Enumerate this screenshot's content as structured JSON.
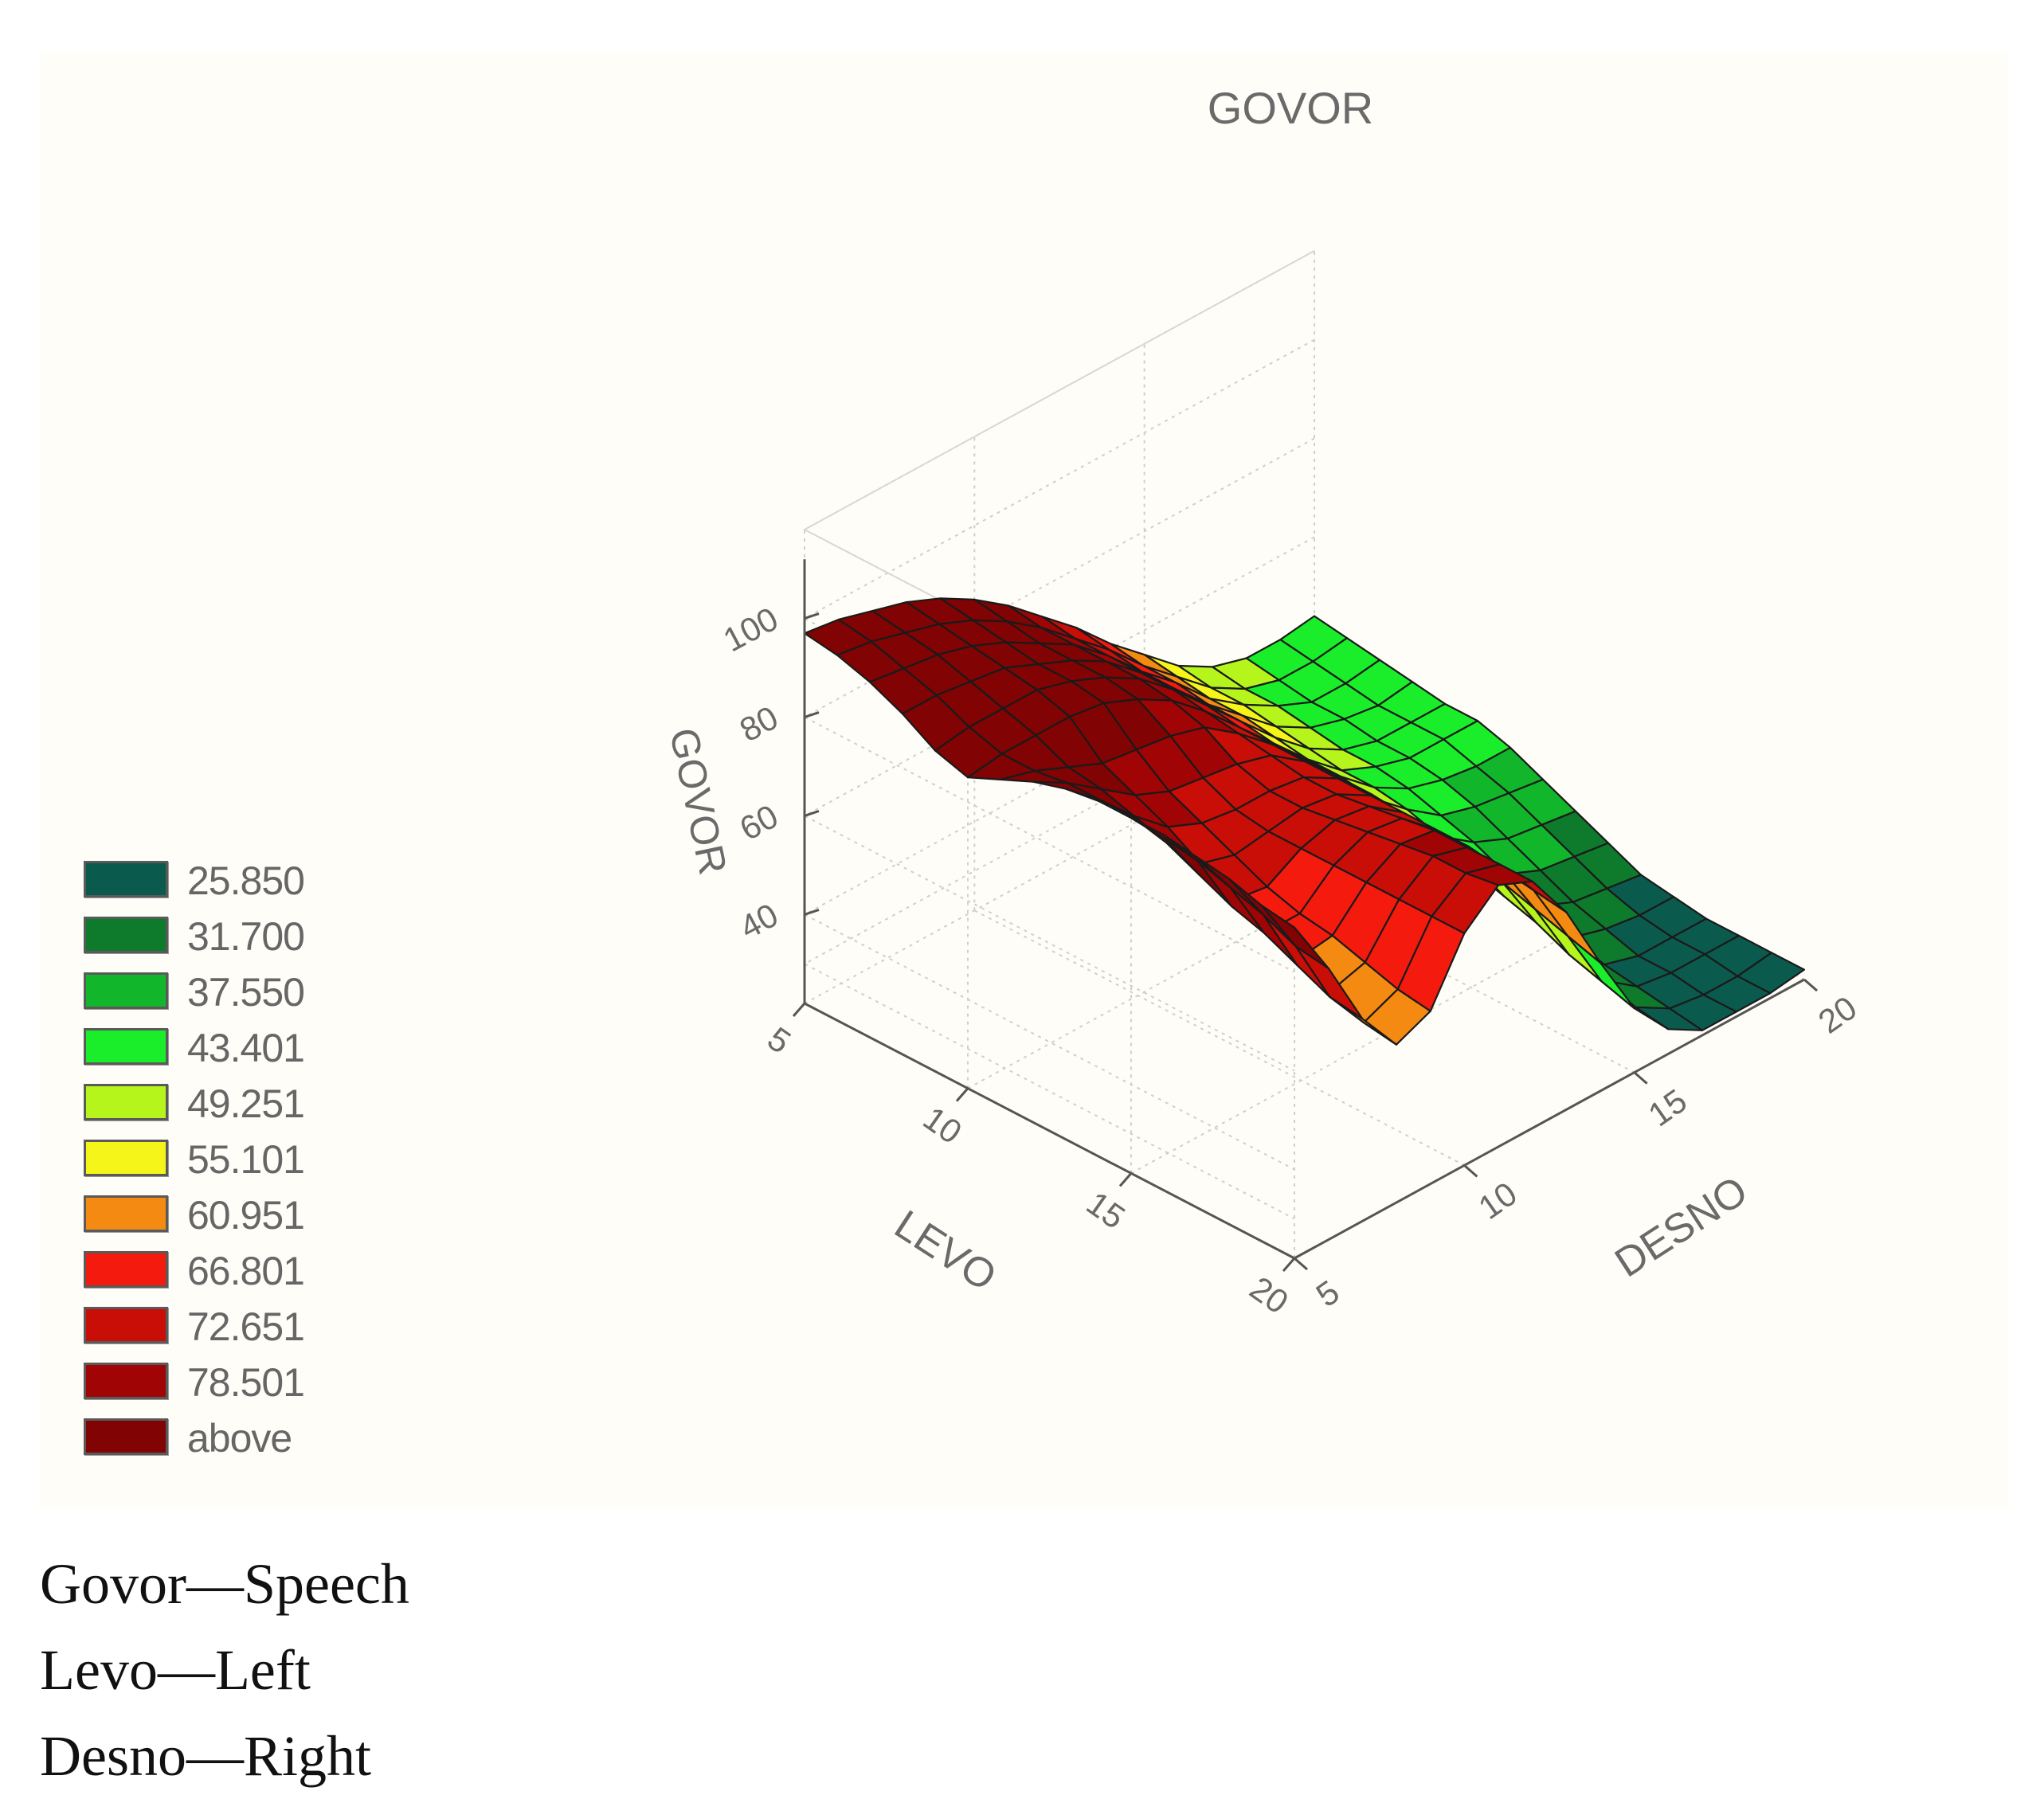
{
  "chart_data": {
    "type": "surface3d",
    "title": "GOVOR",
    "zlabel": "GOVOR",
    "xlabel": "LEVO",
    "ylabel": "DESNO",
    "x_ticks": [
      "5",
      "10",
      "15",
      "20"
    ],
    "y_ticks": [
      "5",
      "10",
      "15",
      "20"
    ],
    "z_ticks": [
      "40",
      "60",
      "80",
      "100"
    ],
    "x_range": [
      5,
      20
    ],
    "y_range": [
      5,
      20
    ],
    "z_range": [
      22,
      118
    ],
    "grid": true,
    "legend_position": "left",
    "x": [
      5,
      6,
      7,
      8,
      9,
      10,
      11,
      12,
      13,
      14,
      15,
      16,
      17,
      18,
      19,
      20
    ],
    "y": [
      5,
      6,
      7,
      8,
      9,
      10,
      11,
      12,
      13,
      14,
      15,
      16,
      17,
      18,
      19,
      20
    ],
    "z": [
      [
        97,
        96,
        94,
        92,
        89,
        85,
        80,
        74,
        68,
        61,
        55,
        49,
        45,
        43,
        43,
        44
      ],
      [
        96,
        95,
        93,
        91,
        88,
        84,
        79,
        73,
        67,
        60,
        54,
        48,
        44,
        42,
        42,
        43
      ],
      [
        94,
        93,
        92,
        90,
        87,
        83,
        79,
        73,
        66,
        60,
        53,
        48,
        44,
        41,
        41,
        42
      ],
      [
        91,
        91,
        90,
        89,
        86,
        83,
        79,
        73,
        66,
        59,
        53,
        47,
        43,
        41,
        40,
        41
      ],
      [
        87,
        88,
        88,
        88,
        86,
        83,
        79,
        73,
        66,
        59,
        52,
        46,
        42,
        40,
        40,
        40
      ],
      [
        85,
        86,
        86,
        86,
        85,
        82,
        78,
        72,
        65,
        58,
        51,
        45,
        42,
        40,
        40,
        40
      ],
      [
        88,
        86,
        83,
        80,
        79,
        78,
        76,
        71,
        65,
        58,
        51,
        45,
        41,
        39,
        38,
        38
      ],
      [
        91,
        87,
        82,
        77,
        74,
        73,
        72,
        70,
        65,
        58,
        50,
        44,
        39,
        37,
        36,
        35
      ],
      [
        93,
        87,
        80,
        74,
        71,
        70,
        70,
        69,
        65,
        58,
        50,
        42,
        37,
        34,
        33,
        32
      ],
      [
        94,
        87,
        78,
        70,
        68,
        69,
        70,
        69,
        65,
        57,
        48,
        40,
        34,
        31,
        30,
        29
      ],
      [
        94,
        86,
        75,
        66,
        65,
        69,
        71,
        70,
        65,
        56,
        46,
        37,
        31,
        28,
        27,
        26
      ],
      [
        94,
        85,
        72,
        63,
        63,
        69,
        72,
        71,
        65,
        55,
        44,
        35,
        28,
        26,
        25,
        25
      ],
      [
        93,
        83,
        70,
        61,
        62,
        69,
        73,
        72,
        65,
        54,
        42,
        32,
        26,
        24,
        24,
        24
      ],
      [
        92,
        81,
        67,
        58,
        60,
        69,
        74,
        72,
        64,
        52,
        39,
        30,
        25,
        24,
        24,
        24
      ],
      [
        90,
        78,
        64,
        55,
        58,
        69,
        74,
        72,
        63,
        50,
        37,
        28,
        24,
        23,
        23,
        24
      ],
      [
        89,
        77,
        63,
        54,
        57,
        69,
        75,
        72,
        62,
        48,
        35,
        27,
        23,
        23,
        23,
        24
      ]
    ],
    "legend": [
      {
        "label": "25.850",
        "color": "#0b5a4e"
      },
      {
        "label": "31.700",
        "color": "#0d7a2c"
      },
      {
        "label": "37.550",
        "color": "#12b62a"
      },
      {
        "label": "43.401",
        "color": "#1aee2a"
      },
      {
        "label": "49.251",
        "color": "#b6f51c"
      },
      {
        "label": "55.101",
        "color": "#f5f51a"
      },
      {
        "label": "60.951",
        "color": "#f58a12"
      },
      {
        "label": "66.801",
        "color": "#f51a0e"
      },
      {
        "label": "72.651",
        "color": "#c80e06"
      },
      {
        "label": "78.501",
        "color": "#a10404"
      },
      {
        "label": "above",
        "color": "#820303"
      }
    ]
  },
  "caption": {
    "line1": "Govor—Speech",
    "line2": "Levo—Left",
    "line3": "Desno—Right"
  }
}
